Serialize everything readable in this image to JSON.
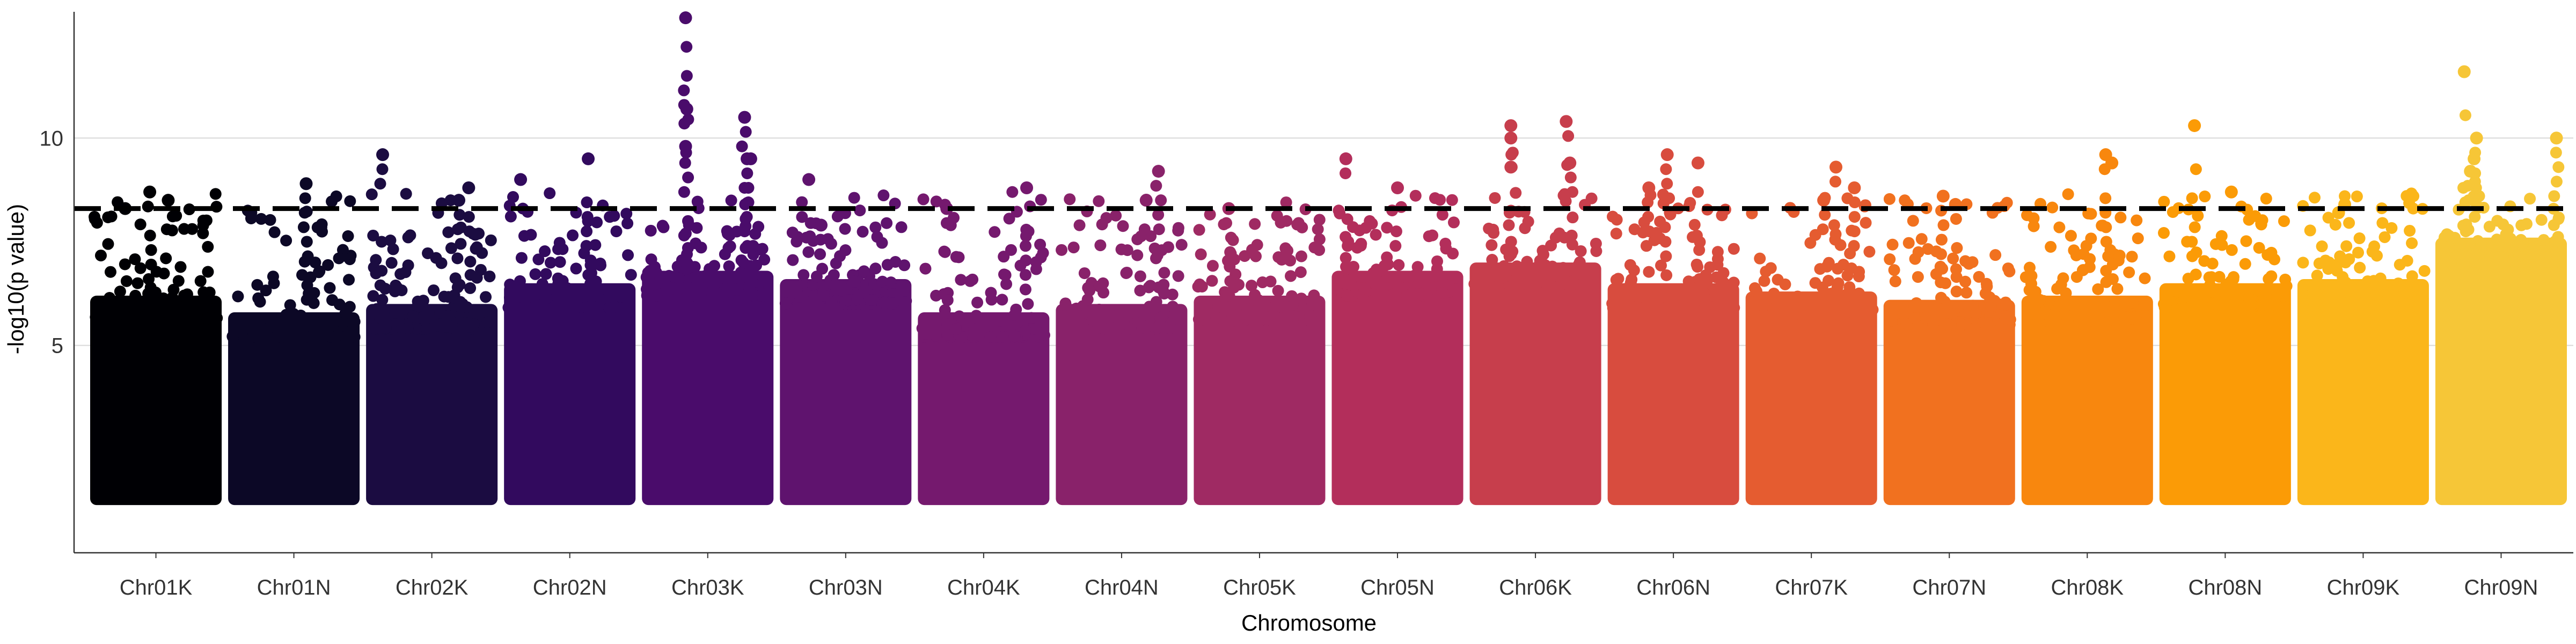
{
  "chart_data": {
    "type": "scatter",
    "subtype": "manhattan",
    "title": "",
    "xlabel": "Chromosome",
    "ylabel": "-log10(p value)",
    "ylim": [
      0,
      13.2
    ],
    "yticks": [
      5,
      10
    ],
    "grid": "horizontal major",
    "legend": "none",
    "threshold": {
      "value": 8.3,
      "style": "dashed",
      "color": "#000000"
    },
    "categories": [
      "Chr01K",
      "Chr01N",
      "Chr02K",
      "Chr02N",
      "Chr03K",
      "Chr03N",
      "Chr04K",
      "Chr04N",
      "Chr05K",
      "Chr05N",
      "Chr06K",
      "Chr06N",
      "Chr07K",
      "Chr07N",
      "Chr08K",
      "Chr08N",
      "Chr09K",
      "Chr09N"
    ],
    "colors": [
      "#000004",
      "#0c0826",
      "#1b0c41",
      "#320a5e",
      "#4a0c6b",
      "#5f136e",
      "#75196e",
      "#89226a",
      "#9f2a63",
      "#b32e5b",
      "#c73e4c",
      "#d84c3e",
      "#e55c30",
      "#f1711f",
      "#f8870e",
      "#fb9b06",
      "#fbb61a",
      "#f6c637"
    ],
    "summary": [
      {
        "chromosome": "Chr01K",
        "max_y": 8.7,
        "band_top": 6.2,
        "peaks": [
          [
            0.45,
            8.7
          ],
          [
            0.6,
            8.5
          ],
          [
            0.25,
            8.3
          ]
        ]
      },
      {
        "chromosome": "Chr01N",
        "max_y": 8.9,
        "band_top": 5.8,
        "peaks": [
          [
            0.6,
            8.9
          ],
          [
            0.15,
            8.2
          ]
        ]
      },
      {
        "chromosome": "Chr02K",
        "max_y": 9.6,
        "band_top": 6.0,
        "peaks": [
          [
            0.1,
            9.6
          ],
          [
            0.8,
            8.8
          ],
          [
            0.72,
            8.5
          ]
        ]
      },
      {
        "chromosome": "Chr02N",
        "max_y": 9.5,
        "band_top": 6.5,
        "peaks": [
          [
            0.65,
            9.5
          ],
          [
            0.1,
            9.0
          ]
        ]
      },
      {
        "chromosome": "Chr03K",
        "max_y": 12.9,
        "band_top": 6.8,
        "peaks": [
          [
            0.32,
            12.9
          ],
          [
            0.33,
            10.7
          ],
          [
            0.8,
            10.5
          ],
          [
            0.32,
            9.8
          ],
          [
            0.82,
            9.5
          ],
          [
            0.85,
            9.5
          ]
        ]
      },
      {
        "chromosome": "Chr03N",
        "max_y": 9.0,
        "band_top": 6.6,
        "peaks": [
          [
            0.2,
            9.0
          ],
          [
            0.3,
            7.9
          ]
        ]
      },
      {
        "chromosome": "Chr04K",
        "max_y": 8.8,
        "band_top": 5.8,
        "peaks": [
          [
            0.85,
            8.8
          ],
          [
            0.2,
            8.3
          ]
        ]
      },
      {
        "chromosome": "Chr04N",
        "max_y": 9.2,
        "band_top": 6.0,
        "peaks": [
          [
            0.8,
            9.2
          ],
          [
            0.7,
            8.5
          ]
        ]
      },
      {
        "chromosome": "Chr05K",
        "max_y": 8.3,
        "band_top": 6.2,
        "peaks": [
          [
            0.25,
            8.3
          ]
        ]
      },
      {
        "chromosome": "Chr05N",
        "max_y": 9.5,
        "band_top": 6.8,
        "peaks": [
          [
            0.08,
            9.5
          ],
          [
            0.5,
            8.8
          ]
        ]
      },
      {
        "chromosome": "Chr06K",
        "max_y": 10.4,
        "band_top": 7.0,
        "peaks": [
          [
            0.3,
            10.3
          ],
          [
            0.75,
            10.4
          ],
          [
            0.3,
            10.0
          ],
          [
            0.78,
            9.4
          ],
          [
            0.3,
            9.3
          ]
        ]
      },
      {
        "chromosome": "Chr06N",
        "max_y": 9.6,
        "band_top": 6.5,
        "peaks": [
          [
            0.45,
            9.6
          ],
          [
            0.7,
            9.4
          ],
          [
            0.3,
            8.8
          ]
        ]
      },
      {
        "chromosome": "Chr07K",
        "max_y": 9.3,
        "band_top": 6.3,
        "peaks": [
          [
            0.7,
            9.3
          ],
          [
            0.85,
            8.8
          ],
          [
            0.6,
            8.5
          ]
        ]
      },
      {
        "chromosome": "Chr07N",
        "max_y": 8.6,
        "band_top": 6.1,
        "peaks": [
          [
            0.45,
            8.6
          ],
          [
            0.55,
            8.4
          ]
        ]
      },
      {
        "chromosome": "Chr08K",
        "max_y": 9.6,
        "band_top": 6.2,
        "peaks": [
          [
            0.65,
            9.6
          ],
          [
            0.7,
            9.4
          ]
        ]
      },
      {
        "chromosome": "Chr08N",
        "max_y": 10.3,
        "band_top": 6.5,
        "peaks": [
          [
            0.25,
            10.3
          ],
          [
            0.55,
            8.7
          ]
        ]
      },
      {
        "chromosome": "Chr09K",
        "max_y": 8.4,
        "band_top": 6.6,
        "peaks": [
          [
            0.35,
            8.4
          ],
          [
            0.3,
            8.2
          ]
        ]
      },
      {
        "chromosome": "Chr09N",
        "max_y": 11.6,
        "band_top": 7.6,
        "peaks": [
          [
            0.2,
            11.6
          ],
          [
            0.3,
            10.0
          ],
          [
            0.95,
            10.0
          ],
          [
            0.28,
            9.5
          ],
          [
            0.25,
            9.2
          ]
        ]
      }
    ]
  }
}
